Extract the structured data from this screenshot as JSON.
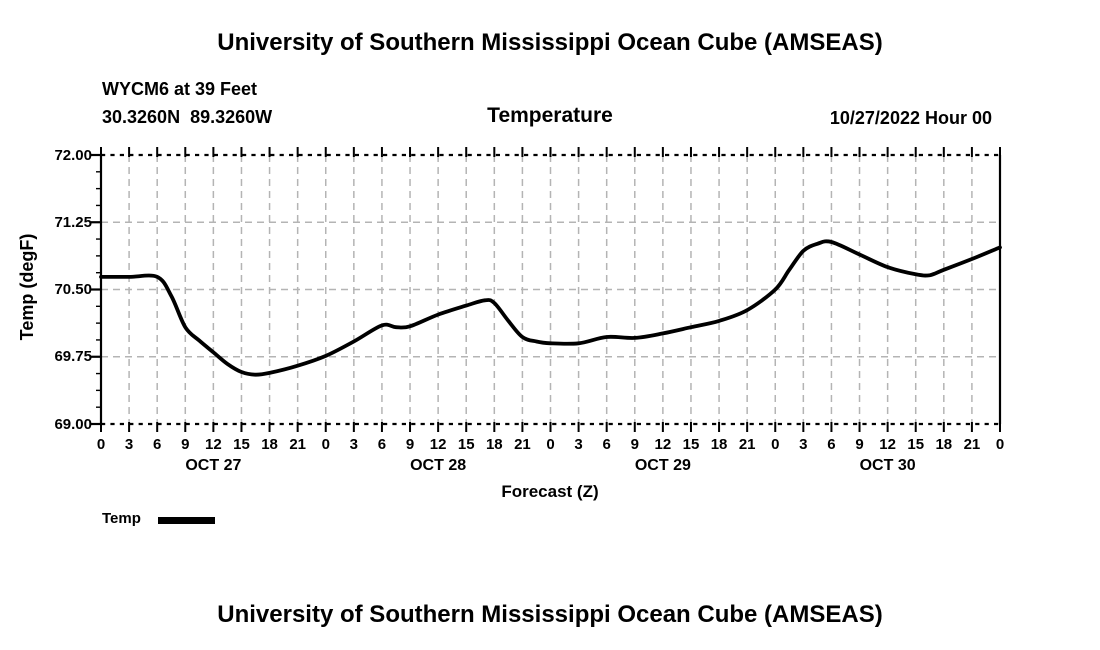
{
  "header": {
    "title": "University of Southern Mississippi Ocean Cube (AMSEAS)",
    "station_line1": "WYCM6 at 39 Feet",
    "station_line2": "30.3260N  89.3260W",
    "datetime_label": "10/27/2022 Hour 00"
  },
  "footer": {
    "title": "University of Southern Mississippi Ocean Cube (AMSEAS)"
  },
  "chart_data": {
    "type": "line",
    "title": "Temperature",
    "xlabel": "Forecast (Z)",
    "ylabel": "Temp (degF)",
    "ylim": [
      69.0,
      72.0
    ],
    "x_range_hours": [
      0,
      96
    ],
    "xtick_interval_hours": 3,
    "x_minor_tick_hours": 1,
    "y_minor_divisions": 4,
    "grid": true,
    "grid_color": "#b4b4b4",
    "axis_color": "#000000",
    "text_color": "#000000",
    "ytick_values": [
      72.0,
      71.25,
      70.5,
      69.75,
      69.0
    ],
    "ytick_labels": [
      "72.00",
      "71.25",
      "70.50",
      "69.75",
      "69.00"
    ],
    "xtick_hours": [
      0,
      3,
      6,
      9,
      12,
      15,
      18,
      21,
      24,
      27,
      30,
      33,
      36,
      39,
      42,
      45,
      48,
      51,
      54,
      57,
      60,
      63,
      66,
      69,
      72,
      75,
      78,
      81,
      84,
      87,
      90,
      93,
      96
    ],
    "xtick_labels": [
      "0",
      "3",
      "6",
      "9",
      "12",
      "15",
      "18",
      "21",
      "0",
      "3",
      "6",
      "9",
      "12",
      "15",
      "18",
      "21",
      "0",
      "3",
      "6",
      "9",
      "12",
      "15",
      "18",
      "21",
      "0",
      "3",
      "6",
      "9",
      "12",
      "15",
      "18",
      "21",
      "0"
    ],
    "day_labels": [
      {
        "label": "OCT 27",
        "hour": 12
      },
      {
        "label": "OCT 28",
        "hour": 36
      },
      {
        "label": "OCT 29",
        "hour": 60
      },
      {
        "label": "OCT 30",
        "hour": 84
      }
    ],
    "legend": {
      "label": "Temp",
      "color": "#000000",
      "position": "below-left"
    },
    "series": [
      {
        "name": "Temp",
        "color": "#000000",
        "x_hours": [
          0,
          3,
          6,
          7.5,
          9,
          10.5,
          12,
          13.5,
          15,
          16.5,
          18,
          21,
          24,
          27,
          30,
          31.5,
          33,
          36,
          39,
          41,
          42,
          43.5,
          45,
          46.5,
          48,
          51,
          54,
          57,
          60,
          63,
          66,
          69,
          72,
          73.5,
          75,
          76.5,
          78,
          81,
          84,
          87,
          88.5,
          90,
          93,
          96
        ],
        "y_degF": [
          70.64,
          70.64,
          70.64,
          70.43,
          70.08,
          69.93,
          69.8,
          69.67,
          69.58,
          69.55,
          69.57,
          69.65,
          69.76,
          69.92,
          70.1,
          70.08,
          70.09,
          70.22,
          70.32,
          70.38,
          70.35,
          70.15,
          69.97,
          69.92,
          69.9,
          69.9,
          69.97,
          69.96,
          70.01,
          70.08,
          70.15,
          70.27,
          70.5,
          70.72,
          70.93,
          71.01,
          71.03,
          70.89,
          70.75,
          70.67,
          70.66,
          70.72,
          70.84,
          70.97
        ]
      }
    ]
  }
}
